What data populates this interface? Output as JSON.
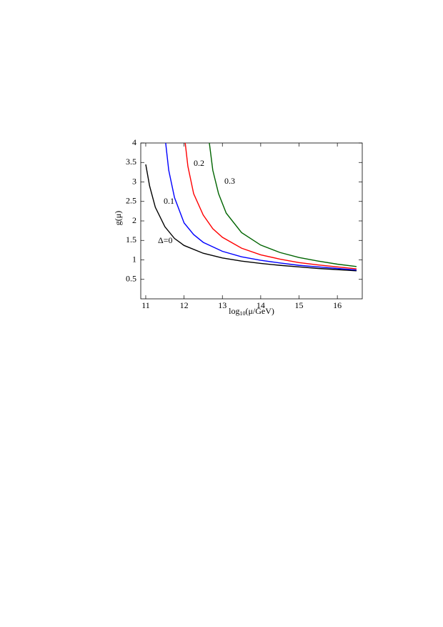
{
  "chart_data": {
    "type": "line",
    "x_label": [
      "log",
      "10",
      "(μ/GeV)"
    ],
    "y_label": "g(μ)",
    "xlim": [
      10.87,
      16.65
    ],
    "ylim": [
      0,
      4
    ],
    "xticks": [
      11,
      12,
      13,
      14,
      15,
      16
    ],
    "yticks": [
      0.5,
      1,
      1.5,
      2,
      2.5,
      3,
      3.5,
      4
    ],
    "series": [
      {
        "name": "Δ=0",
        "color": "#000000",
        "x": [
          11,
          11.1,
          11.25,
          11.5,
          11.75,
          12,
          12.5,
          13,
          13.5,
          14,
          14.5,
          15,
          15.5,
          16,
          16.5
        ],
        "values": [
          3.45,
          2.9,
          2.35,
          1.85,
          1.55,
          1.37,
          1.17,
          1.05,
          0.97,
          0.91,
          0.86,
          0.82,
          0.78,
          0.75,
          0.72
        ]
      },
      {
        "name": "0.1",
        "color": "#0000ff",
        "x": [
          11.52,
          11.6,
          11.75,
          12,
          12.25,
          12.5,
          13,
          13.5,
          14,
          14.5,
          15,
          15.5,
          16,
          16.5
        ],
        "values": [
          4,
          3.3,
          2.6,
          1.95,
          1.65,
          1.45,
          1.22,
          1.08,
          0.99,
          0.92,
          0.86,
          0.82,
          0.78,
          0.74
        ]
      },
      {
        "name": "0.2",
        "color": "#ff0000",
        "x": [
          12.03,
          12.1,
          12.25,
          12.5,
          12.75,
          13,
          13.5,
          14,
          14.5,
          15,
          15.5,
          16,
          16.5
        ],
        "values": [
          4,
          3.4,
          2.7,
          2.15,
          1.8,
          1.58,
          1.3,
          1.13,
          1.02,
          0.93,
          0.87,
          0.82,
          0.77
        ]
      },
      {
        "name": "0.3",
        "color": "#006400",
        "x": [
          12.66,
          12.75,
          12.9,
          13.1,
          13.5,
          14,
          14.5,
          15,
          15.5,
          16,
          16.5
        ],
        "values": [
          4,
          3.3,
          2.7,
          2.2,
          1.7,
          1.38,
          1.19,
          1.06,
          0.97,
          0.89,
          0.83
        ]
      }
    ]
  }
}
